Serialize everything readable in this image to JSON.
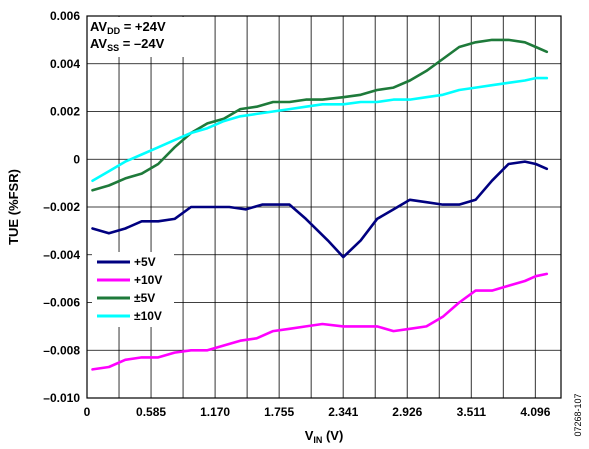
{
  "chart_data": {
    "type": "line",
    "ylabel": "TUE (%FSR)",
    "xlabel": {
      "main": "V",
      "sub": "IN",
      "unit": " (V)"
    },
    "xlim": [
      0,
      4.33
    ],
    "ylim": [
      -0.01,
      0.006
    ],
    "x_ticks": [
      0,
      0.585,
      1.17,
      1.755,
      2.341,
      2.926,
      3.511,
      4.096
    ],
    "x_tick_labels": [
      "0",
      "0.585",
      "1.170",
      "1.755",
      "2.341",
      "2.926",
      "3.511",
      "4.096"
    ],
    "y_ticks": [
      0.006,
      0.004,
      0.002,
      0,
      -0.002,
      -0.004,
      -0.006,
      -0.008,
      -0.01
    ],
    "y_tick_labels": [
      "0.006",
      "0.004",
      "0.002",
      "0",
      "–0.002",
      "–0.004",
      "–0.006",
      "–0.008",
      "–0.010"
    ],
    "conditions": [
      {
        "main": "AV",
        "sub": "DD",
        "rest": " = +24V"
      },
      {
        "main": "AV",
        "sub": "SS",
        "rest": " = –24V"
      }
    ],
    "figure_id": "07268-107",
    "grid": true,
    "legend_position": "lower-left",
    "series": [
      {
        "name": "+5V",
        "color": "#000080",
        "x": [
          0.05,
          0.2,
          0.35,
          0.5,
          0.65,
          0.8,
          0.95,
          1.1,
          1.3,
          1.45,
          1.6,
          1.75,
          1.85,
          2.0,
          2.2,
          2.341,
          2.5,
          2.65,
          2.8,
          2.95,
          3.1,
          3.25,
          3.4,
          3.55,
          3.7,
          3.85,
          4.0,
          4.1,
          4.2
        ],
        "y": [
          -0.0029,
          -0.0031,
          -0.0029,
          -0.0026,
          -0.0026,
          -0.0025,
          -0.002,
          -0.002,
          -0.002,
          -0.0021,
          -0.0019,
          -0.0019,
          -0.0019,
          -0.0025,
          -0.0034,
          -0.0041,
          -0.0034,
          -0.0025,
          -0.0021,
          -0.0017,
          -0.0018,
          -0.0019,
          -0.0019,
          -0.0017,
          -0.0009,
          -0.0002,
          -0.0001,
          -0.0002,
          -0.0004
        ]
      },
      {
        "name": "+10V",
        "color": "#ff00ff",
        "x": [
          0.05,
          0.2,
          0.35,
          0.5,
          0.65,
          0.8,
          0.95,
          1.1,
          1.25,
          1.4,
          1.55,
          1.7,
          1.85,
          2.0,
          2.15,
          2.341,
          2.5,
          2.65,
          2.8,
          2.95,
          3.1,
          3.25,
          3.4,
          3.55,
          3.7,
          3.85,
          4.0,
          4.1,
          4.2
        ],
        "y": [
          -0.0088,
          -0.0087,
          -0.0084,
          -0.0083,
          -0.0083,
          -0.0081,
          -0.008,
          -0.008,
          -0.0078,
          -0.0076,
          -0.0075,
          -0.0072,
          -0.0071,
          -0.007,
          -0.0069,
          -0.007,
          -0.007,
          -0.007,
          -0.0072,
          -0.0071,
          -0.007,
          -0.0066,
          -0.006,
          -0.0055,
          -0.0055,
          -0.0053,
          -0.0051,
          -0.0049,
          -0.0048
        ]
      },
      {
        "name": "±5V",
        "color": "#1e7a3a",
        "x": [
          0.05,
          0.2,
          0.35,
          0.5,
          0.65,
          0.8,
          0.95,
          1.1,
          1.25,
          1.4,
          1.55,
          1.7,
          1.85,
          2.0,
          2.15,
          2.341,
          2.5,
          2.65,
          2.8,
          2.95,
          3.1,
          3.25,
          3.4,
          3.55,
          3.7,
          3.85,
          4.0,
          4.1,
          4.2
        ],
        "y": [
          -0.0013,
          -0.0011,
          -0.0008,
          -0.0006,
          -0.0002,
          0.0005,
          0.0011,
          0.0015,
          0.0017,
          0.0021,
          0.0022,
          0.0024,
          0.0024,
          0.0025,
          0.0025,
          0.0026,
          0.0027,
          0.0029,
          0.003,
          0.0033,
          0.0037,
          0.0042,
          0.0047,
          0.0049,
          0.005,
          0.005,
          0.0049,
          0.0047,
          0.0045
        ]
      },
      {
        "name": "±10V",
        "color": "#00ffff",
        "x": [
          0.05,
          0.2,
          0.35,
          0.5,
          0.65,
          0.8,
          0.95,
          1.1,
          1.25,
          1.4,
          1.55,
          1.7,
          1.85,
          2.0,
          2.15,
          2.341,
          2.5,
          2.65,
          2.8,
          2.95,
          3.1,
          3.25,
          3.4,
          3.55,
          3.7,
          3.85,
          4.0,
          4.1,
          4.2
        ],
        "y": [
          -0.0009,
          -0.0005,
          -0.0001,
          0.0002,
          0.0005,
          0.0008,
          0.0011,
          0.0013,
          0.0016,
          0.0018,
          0.0019,
          0.002,
          0.0021,
          0.0022,
          0.0023,
          0.0023,
          0.0024,
          0.0024,
          0.0025,
          0.0025,
          0.0026,
          0.0027,
          0.0029,
          0.003,
          0.0031,
          0.0032,
          0.0033,
          0.0034,
          0.0034
        ]
      }
    ]
  }
}
